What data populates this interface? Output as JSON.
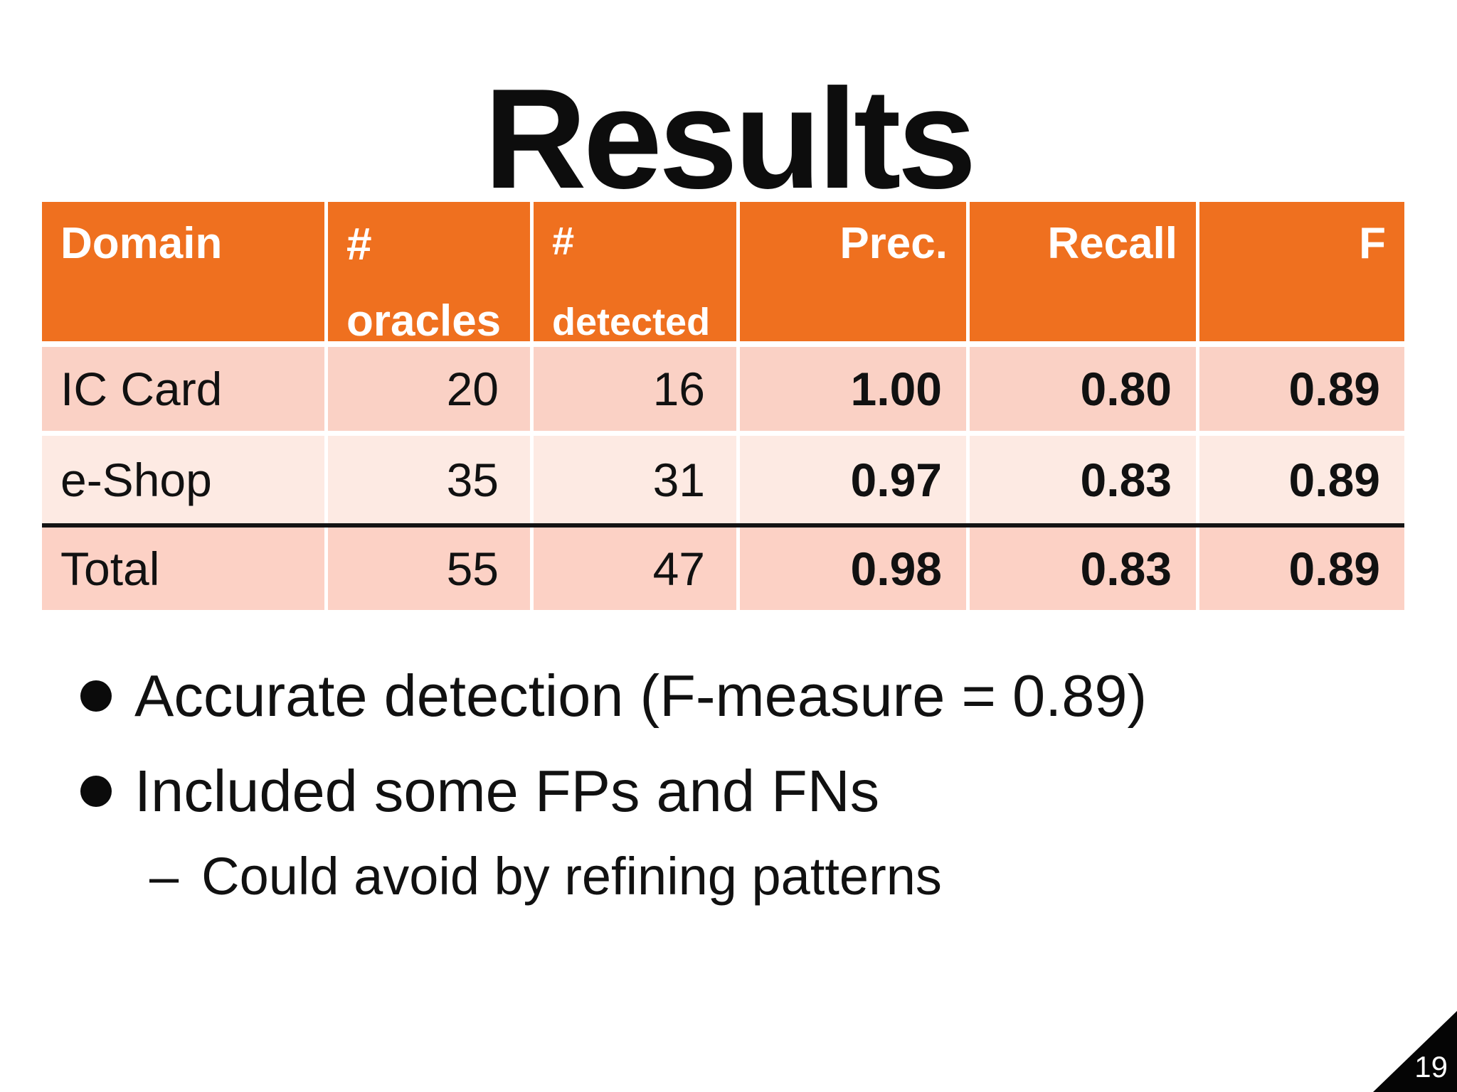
{
  "slide": {
    "title": "Results",
    "page_number": "19"
  },
  "table": {
    "columns": [
      {
        "label": "Domain",
        "sublabel": ""
      },
      {
        "label": "#",
        "sublabel": "oracles"
      },
      {
        "label": "#",
        "sublabel": "detected"
      },
      {
        "label": "Prec.",
        "sublabel": ""
      },
      {
        "label": "Recall",
        "sublabel": ""
      },
      {
        "label": "F",
        "sublabel": ""
      }
    ],
    "rows": [
      {
        "domain": "IC Card",
        "oracles": "20",
        "detected": "16",
        "prec": "1.00",
        "recall": "0.80",
        "f": "0.89"
      },
      {
        "domain": "e-Shop",
        "oracles": "35",
        "detected": "31",
        "prec": "0.97",
        "recall": "0.83",
        "f": "0.89"
      },
      {
        "domain": "Total",
        "oracles": "55",
        "detected": "47",
        "prec": "0.98",
        "recall": "0.83",
        "f": "0.89"
      }
    ]
  },
  "bullets": {
    "items": [
      {
        "text": "Accurate detection (F-measure = 0.89)"
      },
      {
        "text": "Included some FPs and FNs"
      }
    ],
    "sub_items": [
      {
        "marker": "–",
        "text": "Could avoid by refining patterns"
      }
    ]
  },
  "colors": {
    "header_orange": "#EF701F",
    "row_pink_dark": "#FAD1C5",
    "row_pink_light": "#FDEAE3",
    "row_total_pink": "#FCD1C5",
    "divider_black": "#141414",
    "corner_black": "#050505",
    "header_text_white": "#FFFFFF",
    "text_black": "#111111"
  }
}
